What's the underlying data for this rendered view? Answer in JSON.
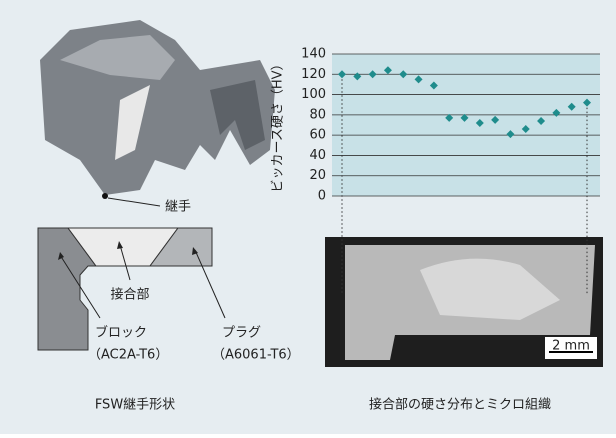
{
  "chart_data": {
    "type": "scatter",
    "y_label": "ビッカース硬さ（HV）",
    "categories": [
      null,
      null,
      null,
      null,
      null,
      null,
      null,
      null,
      null,
      null,
      null,
      null,
      null,
      null,
      null,
      null,
      null
    ],
    "values": [
      120,
      118,
      120,
      124,
      120,
      115,
      109,
      77,
      77,
      72,
      75,
      61,
      66,
      74,
      82,
      88,
      92
    ],
    "color": "#1f8c8c",
    "ylim": [
      0,
      140
    ],
    "yticks": [
      0,
      20,
      40,
      60,
      80,
      100,
      120,
      140
    ],
    "grid": true
  },
  "labels": {
    "joint": "継手",
    "weld": "接合部",
    "block": "ブロック",
    "block_alloy": "（AC2A-T6）",
    "plug": "プラグ",
    "plug_alloy": "（A6061-T6）",
    "scale": "2 mm",
    "left_caption": "FSW継手形状",
    "right_caption": "接合部の硬さ分布とミクロ組織"
  }
}
